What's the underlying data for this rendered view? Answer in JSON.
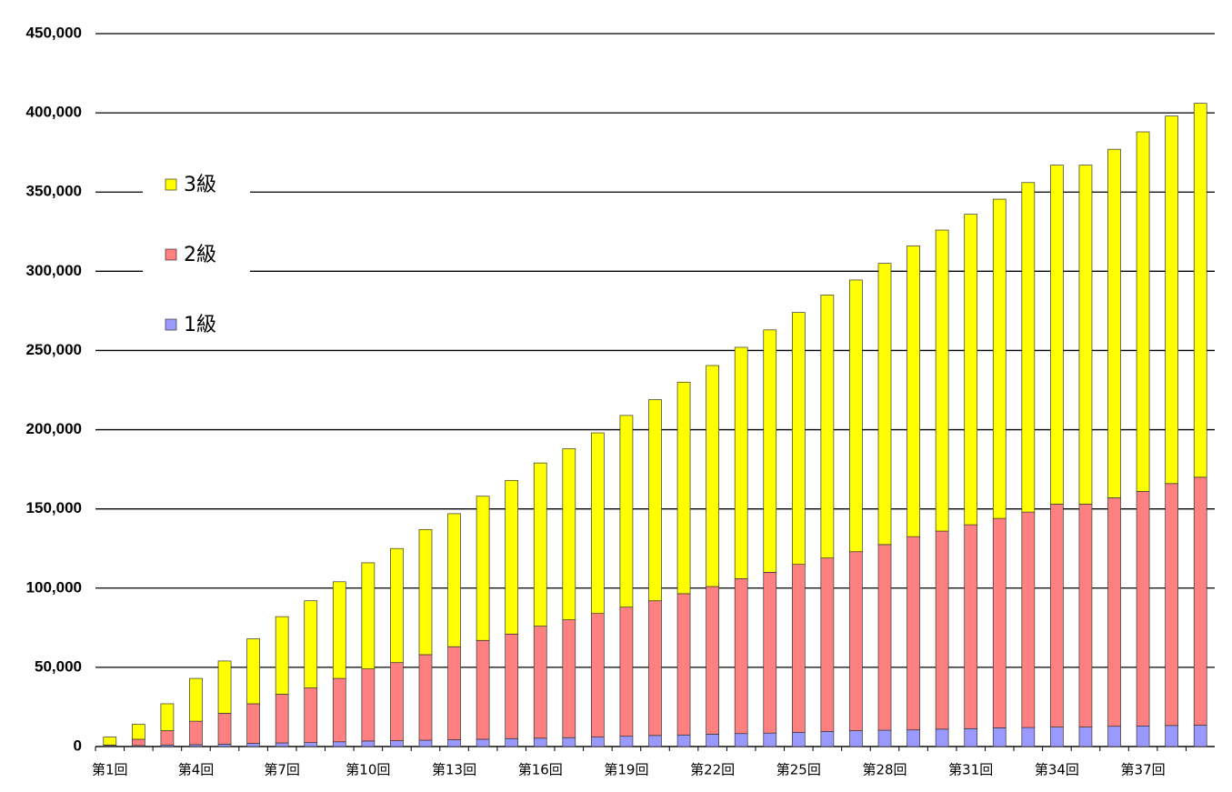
{
  "chart_data": {
    "type": "stacked-bar",
    "categories": [
      "第1回",
      null,
      null,
      "第4回",
      null,
      null,
      "第7回",
      null,
      null,
      "第10回",
      null,
      null,
      "第13回",
      null,
      null,
      "第16回",
      null,
      null,
      "第19回",
      null,
      null,
      "第22回",
      null,
      null,
      "第25回",
      null,
      null,
      "第28回",
      null,
      null,
      "第31回",
      null,
      null,
      "第34回",
      null,
      null,
      "第37回",
      null,
      null
    ],
    "series": [
      {
        "name": "1級",
        "color": "#9999ff",
        "values": [
          500,
          600,
          1000,
          1200,
          1500,
          2000,
          2300,
          2500,
          3000,
          3500,
          3700,
          4000,
          4300,
          4600,
          5000,
          5300,
          5600,
          6000,
          6500,
          7000,
          7300,
          7800,
          8200,
          8500,
          9000,
          9500,
          10000,
          10300,
          10500,
          11000,
          11300,
          11800,
          12000,
          12300,
          12300,
          12800,
          13000,
          13300,
          13500
        ]
      },
      {
        "name": "2級",
        "color": "#ff8080",
        "values": [
          500,
          4000,
          9000,
          14800,
          19500,
          25000,
          30700,
          34500,
          40000,
          45500,
          49300,
          54000,
          58700,
          62400,
          66000,
          70700,
          74400,
          78000,
          81500,
          85000,
          89200,
          93200,
          97800,
          101500,
          106000,
          109500,
          113000,
          117200,
          122000,
          125000,
          128700,
          132200,
          136000,
          140700,
          140700,
          144200,
          148000,
          152700,
          156500
        ]
      },
      {
        "name": "3級",
        "color": "#ffff00",
        "values": [
          5000,
          9400,
          17000,
          27000,
          33000,
          41000,
          49000,
          55000,
          61000,
          67000,
          72000,
          79000,
          84000,
          91000,
          97000,
          103000,
          108000,
          114000,
          121000,
          127000,
          133500,
          139500,
          146000,
          153000,
          159000,
          166000,
          171500,
          177500,
          183500,
          190000,
          196000,
          201500,
          208000,
          214000,
          214000,
          220000,
          227000,
          232000,
          236000
        ]
      }
    ],
    "ylim": [
      0,
      450000
    ],
    "yticks": [
      0,
      {
        "value": 50000,
        "label": "50,000"
      },
      {
        "value": 100000,
        "label": "100,000"
      },
      {
        "value": 150000,
        "label": "150,000"
      },
      {
        "value": 200000,
        "label": "200,000"
      },
      {
        "value": 250000,
        "label": "250,000"
      },
      {
        "value": 300000,
        "label": "300,000"
      },
      {
        "value": 350000,
        "label": "350,000"
      },
      {
        "value": 400000,
        "label": "400,000"
      },
      {
        "value": 450000,
        "label": "450,000"
      }
    ],
    "grid": true,
    "legend": "upper left"
  }
}
